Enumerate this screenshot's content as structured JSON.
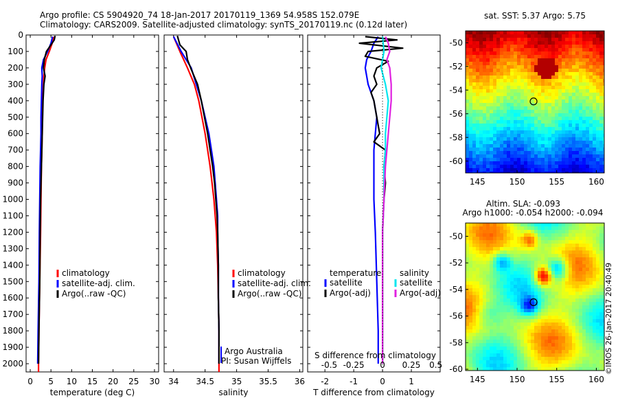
{
  "header": {
    "line1": "Argo profile: CS 5904920_74 18-Jan-2017 20170119_1369 54.958S 152.079E",
    "line2": "Climatology: CARS2009. Satellite-adjusted climatology: synTS_20170119.nc (0.12d later)"
  },
  "credit": "©IMOS 26-Jan-2017 20:40:49",
  "colors": {
    "climatology": "#ff0000",
    "satellite": "#0000ff",
    "argo": "#000000",
    "sat_salinity": "#00e5ee",
    "argo_adj_salinity": "#e020e0"
  },
  "chart_data": [
    {
      "id": "temperature",
      "type": "line",
      "xlabel": "temperature (deg C)",
      "ylabel": "",
      "xlim": [
        -1,
        31
      ],
      "ylim": [
        2050,
        0
      ],
      "x_ticks": [
        0,
        5,
        10,
        15,
        20,
        25,
        30
      ],
      "y_ticks": [
        0,
        100,
        200,
        300,
        400,
        500,
        600,
        700,
        800,
        900,
        1000,
        1100,
        1200,
        1300,
        1400,
        1500,
        1600,
        1700,
        1800,
        1900,
        2000
      ],
      "legend": [
        "climatology",
        "satellite-adj. clim.",
        "Argo(..raw -QC)"
      ],
      "series": [
        {
          "name": "climatology",
          "color": "#ff0000",
          "depth": [
            10,
            50,
            100,
            150,
            200,
            250,
            300,
            400,
            500,
            600,
            700,
            800,
            1000,
            1200,
            1500,
            1800,
            2000,
            2050
          ],
          "values": [
            5.6,
            5.3,
            4.6,
            3.8,
            3.5,
            3.3,
            3.2,
            3.0,
            2.9,
            2.9,
            2.8,
            2.7,
            2.6,
            2.5,
            2.3,
            2.1,
            2.0,
            2.0
          ]
        },
        {
          "name": "satellite-adj. clim.",
          "color": "#0000ff",
          "depth": [
            10,
            50,
            100,
            150,
            200,
            250,
            300,
            400,
            500,
            600,
            700,
            800,
            1000,
            1200,
            1500,
            1800,
            2000
          ],
          "values": [
            5.4,
            5.0,
            4.2,
            3.2,
            2.8,
            2.9,
            2.8,
            2.7,
            2.6,
            2.6,
            2.5,
            2.4,
            2.3,
            2.2,
            2.1,
            1.9,
            1.8
          ]
        },
        {
          "name": "Argo(..raw -QC)",
          "color": "#000000",
          "depth": [
            5,
            30,
            60,
            100,
            150,
            200,
            250,
            300,
            400,
            500,
            600,
            700,
            800,
            1000,
            1200,
            1500,
            1800,
            2000
          ],
          "values": [
            6.0,
            5.8,
            5.0,
            3.9,
            3.4,
            3.2,
            3.6,
            3.3,
            3.1,
            3.0,
            2.9,
            2.8,
            2.7,
            2.5,
            2.4,
            2.3,
            2.1,
            2.0
          ]
        }
      ]
    },
    {
      "id": "salinity",
      "type": "line",
      "xlabel": "salinity",
      "ylabel": "",
      "xlim": [
        33.85,
        36.05
      ],
      "ylim": [
        2050,
        0
      ],
      "x_ticks": [
        34,
        34.5,
        35,
        35.5,
        36
      ],
      "x_ticklabels": [
        "34",
        "34.5",
        "35",
        "35.5",
        "36"
      ],
      "legend": [
        "climatology",
        "satellite-adj. clim.",
        "Argo(..raw -QC)"
      ],
      "annotations": [
        "Argo Australia",
        "PI: Susan Wijffels"
      ],
      "series": [
        {
          "name": "climatology",
          "color": "#ff0000",
          "depth": [
            10,
            100,
            200,
            300,
            400,
            500,
            600,
            700,
            800,
            900,
            1000,
            1100,
            1200,
            1400,
            1600,
            1800,
            2000,
            2050
          ],
          "values": [
            34.0,
            34.1,
            34.22,
            34.33,
            34.4,
            34.45,
            34.5,
            34.54,
            34.58,
            34.61,
            34.64,
            34.66,
            34.68,
            34.7,
            34.71,
            34.72,
            34.72,
            34.72
          ]
        },
        {
          "name": "satellite-adj. clim.",
          "color": "#0000ff",
          "depth": [
            10,
            100,
            200,
            300,
            400,
            500,
            600,
            700,
            800,
            900,
            1000,
            1100,
            1200,
            1400,
            1600,
            1800,
            2000
          ],
          "values": [
            34.0,
            34.12,
            34.28,
            34.36,
            34.44,
            34.5,
            34.56,
            34.6,
            34.64,
            34.66,
            34.68,
            34.7,
            34.7,
            34.71,
            34.71,
            34.72,
            34.72
          ]
        },
        {
          "name": "Argo(..raw -QC)",
          "color": "#000000",
          "depth": [
            5,
            60,
            100,
            150,
            200,
            300,
            400,
            500,
            600,
            700,
            800,
            900,
            1000,
            1100,
            1200,
            1400,
            1600,
            1800,
            2000
          ],
          "values": [
            34.06,
            34.1,
            34.2,
            34.22,
            34.27,
            34.38,
            34.44,
            34.49,
            34.54,
            34.58,
            34.62,
            34.65,
            34.67,
            34.69,
            34.7,
            34.71,
            34.71,
            34.72,
            34.72
          ]
        }
      ]
    },
    {
      "id": "difference",
      "type": "line",
      "xlabel": "T difference from climatology",
      "x2label": "S difference from climatology",
      "xlim": [
        -2.6,
        2.0
      ],
      "ylim": [
        2050,
        0
      ],
      "x_ticks": [
        -2,
        -1,
        0,
        1
      ],
      "x2_ticks": [
        "-0.5",
        "-0.25",
        "0",
        "0.25",
        "0.5"
      ],
      "legend_titles": [
        "temperature",
        "salinity"
      ],
      "legend": [
        "satellite",
        "Argo(-adj)",
        "satellite",
        "Argo(-adj)"
      ],
      "series": [
        {
          "name": "satellite",
          "quantity": "temperature",
          "color": "#0000ff",
          "depth": [
            10,
            50,
            100,
            150,
            200,
            300,
            400,
            500,
            600,
            700,
            800,
            1000,
            1200,
            1500,
            1800,
            2000
          ],
          "values": [
            -0.15,
            -0.3,
            -0.4,
            -0.55,
            -0.6,
            -0.5,
            -0.3,
            -0.2,
            -0.25,
            -0.3,
            -0.3,
            -0.3,
            -0.25,
            -0.2,
            -0.15,
            -0.15
          ]
        },
        {
          "name": "Argo(-adj)",
          "quantity": "temperature",
          "color": "#000000",
          "depth": [
            10,
            30,
            50,
            80,
            100,
            130,
            160,
            200,
            250,
            300,
            350,
            400,
            500,
            600,
            650,
            700,
            800,
            900,
            1000,
            1200,
            1500,
            1800,
            2000
          ],
          "values": [
            -0.6,
            0.5,
            -0.8,
            0.7,
            -0.5,
            -0.6,
            0.2,
            -0.2,
            -0.3,
            -0.2,
            -0.4,
            -0.3,
            -0.2,
            -0.1,
            -0.3,
            0.1,
            0.05,
            0.1,
            0.05,
            0.0,
            0.0,
            0.0,
            0.0
          ]
        },
        {
          "name": "satellite",
          "quantity": "salinity",
          "color": "#00e5ee",
          "depth": [
            10,
            100,
            200,
            300,
            400,
            500,
            600,
            700,
            800,
            1000,
            1200,
            1500,
            1800,
            2000
          ],
          "values": [
            0.0,
            0.05,
            -0.05,
            0.1,
            0.2,
            0.15,
            0.1,
            0.1,
            0.05,
            0.05,
            0.0,
            0.0,
            0.0,
            0.0
          ]
        },
        {
          "name": "Argo(-adj)",
          "quantity": "salinity",
          "color": "#e020e0",
          "depth": [
            10,
            50,
            100,
            150,
            200,
            300,
            400,
            500,
            600,
            700,
            800,
            1000,
            1200,
            1500,
            1800,
            2000
          ],
          "values": [
            0.1,
            0.2,
            0.25,
            0.15,
            0.25,
            0.3,
            0.3,
            0.25,
            0.2,
            0.15,
            0.1,
            0.05,
            0.0,
            0.0,
            0.0,
            0.0
          ]
        }
      ]
    },
    {
      "id": "sst-map",
      "type": "heatmap",
      "title": "sat. SST: 5.37 Argo: 5.75",
      "xlim": [
        143.5,
        161
      ],
      "ylim": [
        -61,
        -49
      ],
      "x_ticks": [
        145,
        150,
        155,
        160
      ],
      "y_ticks": [
        -50,
        -52,
        -54,
        -56,
        -58,
        -60
      ],
      "marker": {
        "lon": 152.079,
        "lat": -54.958
      }
    },
    {
      "id": "sla-map",
      "type": "heatmap",
      "title": "Altim. SLA: -0.093",
      "subtitle": "Argo h1000: -0.054 h2000: -0.094",
      "xlim": [
        143.5,
        161
      ],
      "ylim": [
        -60.1,
        -49
      ],
      "x_ticks": [
        145,
        150,
        155,
        160
      ],
      "y_ticks": [
        -50,
        -52,
        -54,
        -56,
        -58,
        -60
      ],
      "marker": {
        "lon": 152.079,
        "lat": -54.958
      }
    }
  ]
}
